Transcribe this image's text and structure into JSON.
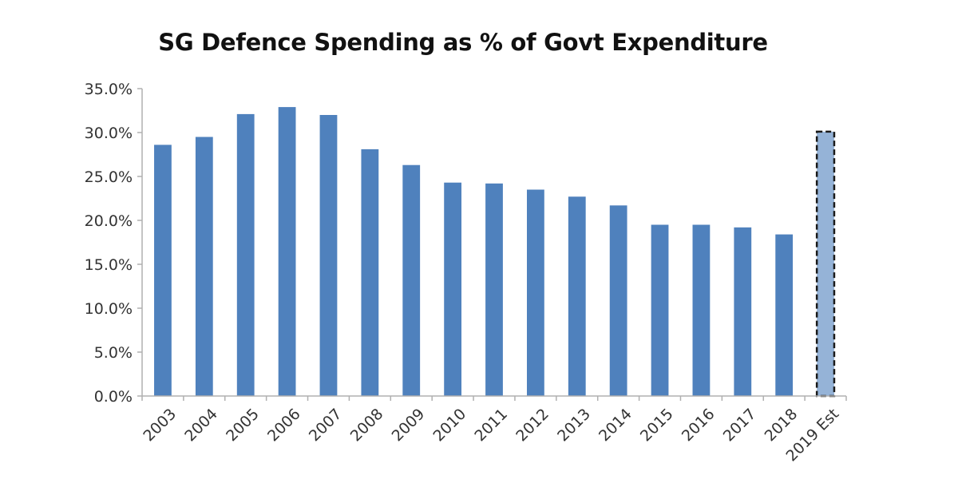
{
  "chart_data": {
    "type": "bar",
    "title": "SG Defence Spending as % of Govt Expenditure",
    "categories": [
      "2003",
      "2004",
      "2005",
      "2006",
      "2007",
      "2008",
      "2009",
      "2010",
      "2011",
      "2012",
      "2013",
      "2014",
      "2015",
      "2016",
      "2017",
      "2018",
      "2019 Est"
    ],
    "values": [
      28.6,
      29.5,
      32.1,
      32.9,
      32.0,
      28.1,
      26.3,
      24.3,
      24.2,
      23.5,
      22.7,
      21.7,
      19.5,
      19.5,
      19.2,
      18.4,
      30.1
    ],
    "estimated": [
      false,
      false,
      false,
      false,
      false,
      false,
      false,
      false,
      false,
      false,
      false,
      false,
      false,
      false,
      false,
      false,
      true
    ],
    "ylim": [
      0,
      35
    ],
    "yticks": [
      "0.0%",
      "5.0%",
      "10.0%",
      "15.0%",
      "20.0%",
      "25.0%",
      "30.0%",
      "35.0%"
    ],
    "xlabel": "",
    "ylabel": "",
    "grid": false,
    "colors": {
      "bar": "#4f81bd",
      "estimate_bar": "#95b3d7",
      "estimate_border": "#1a1a1a",
      "axis": "#b0b0b0"
    }
  }
}
